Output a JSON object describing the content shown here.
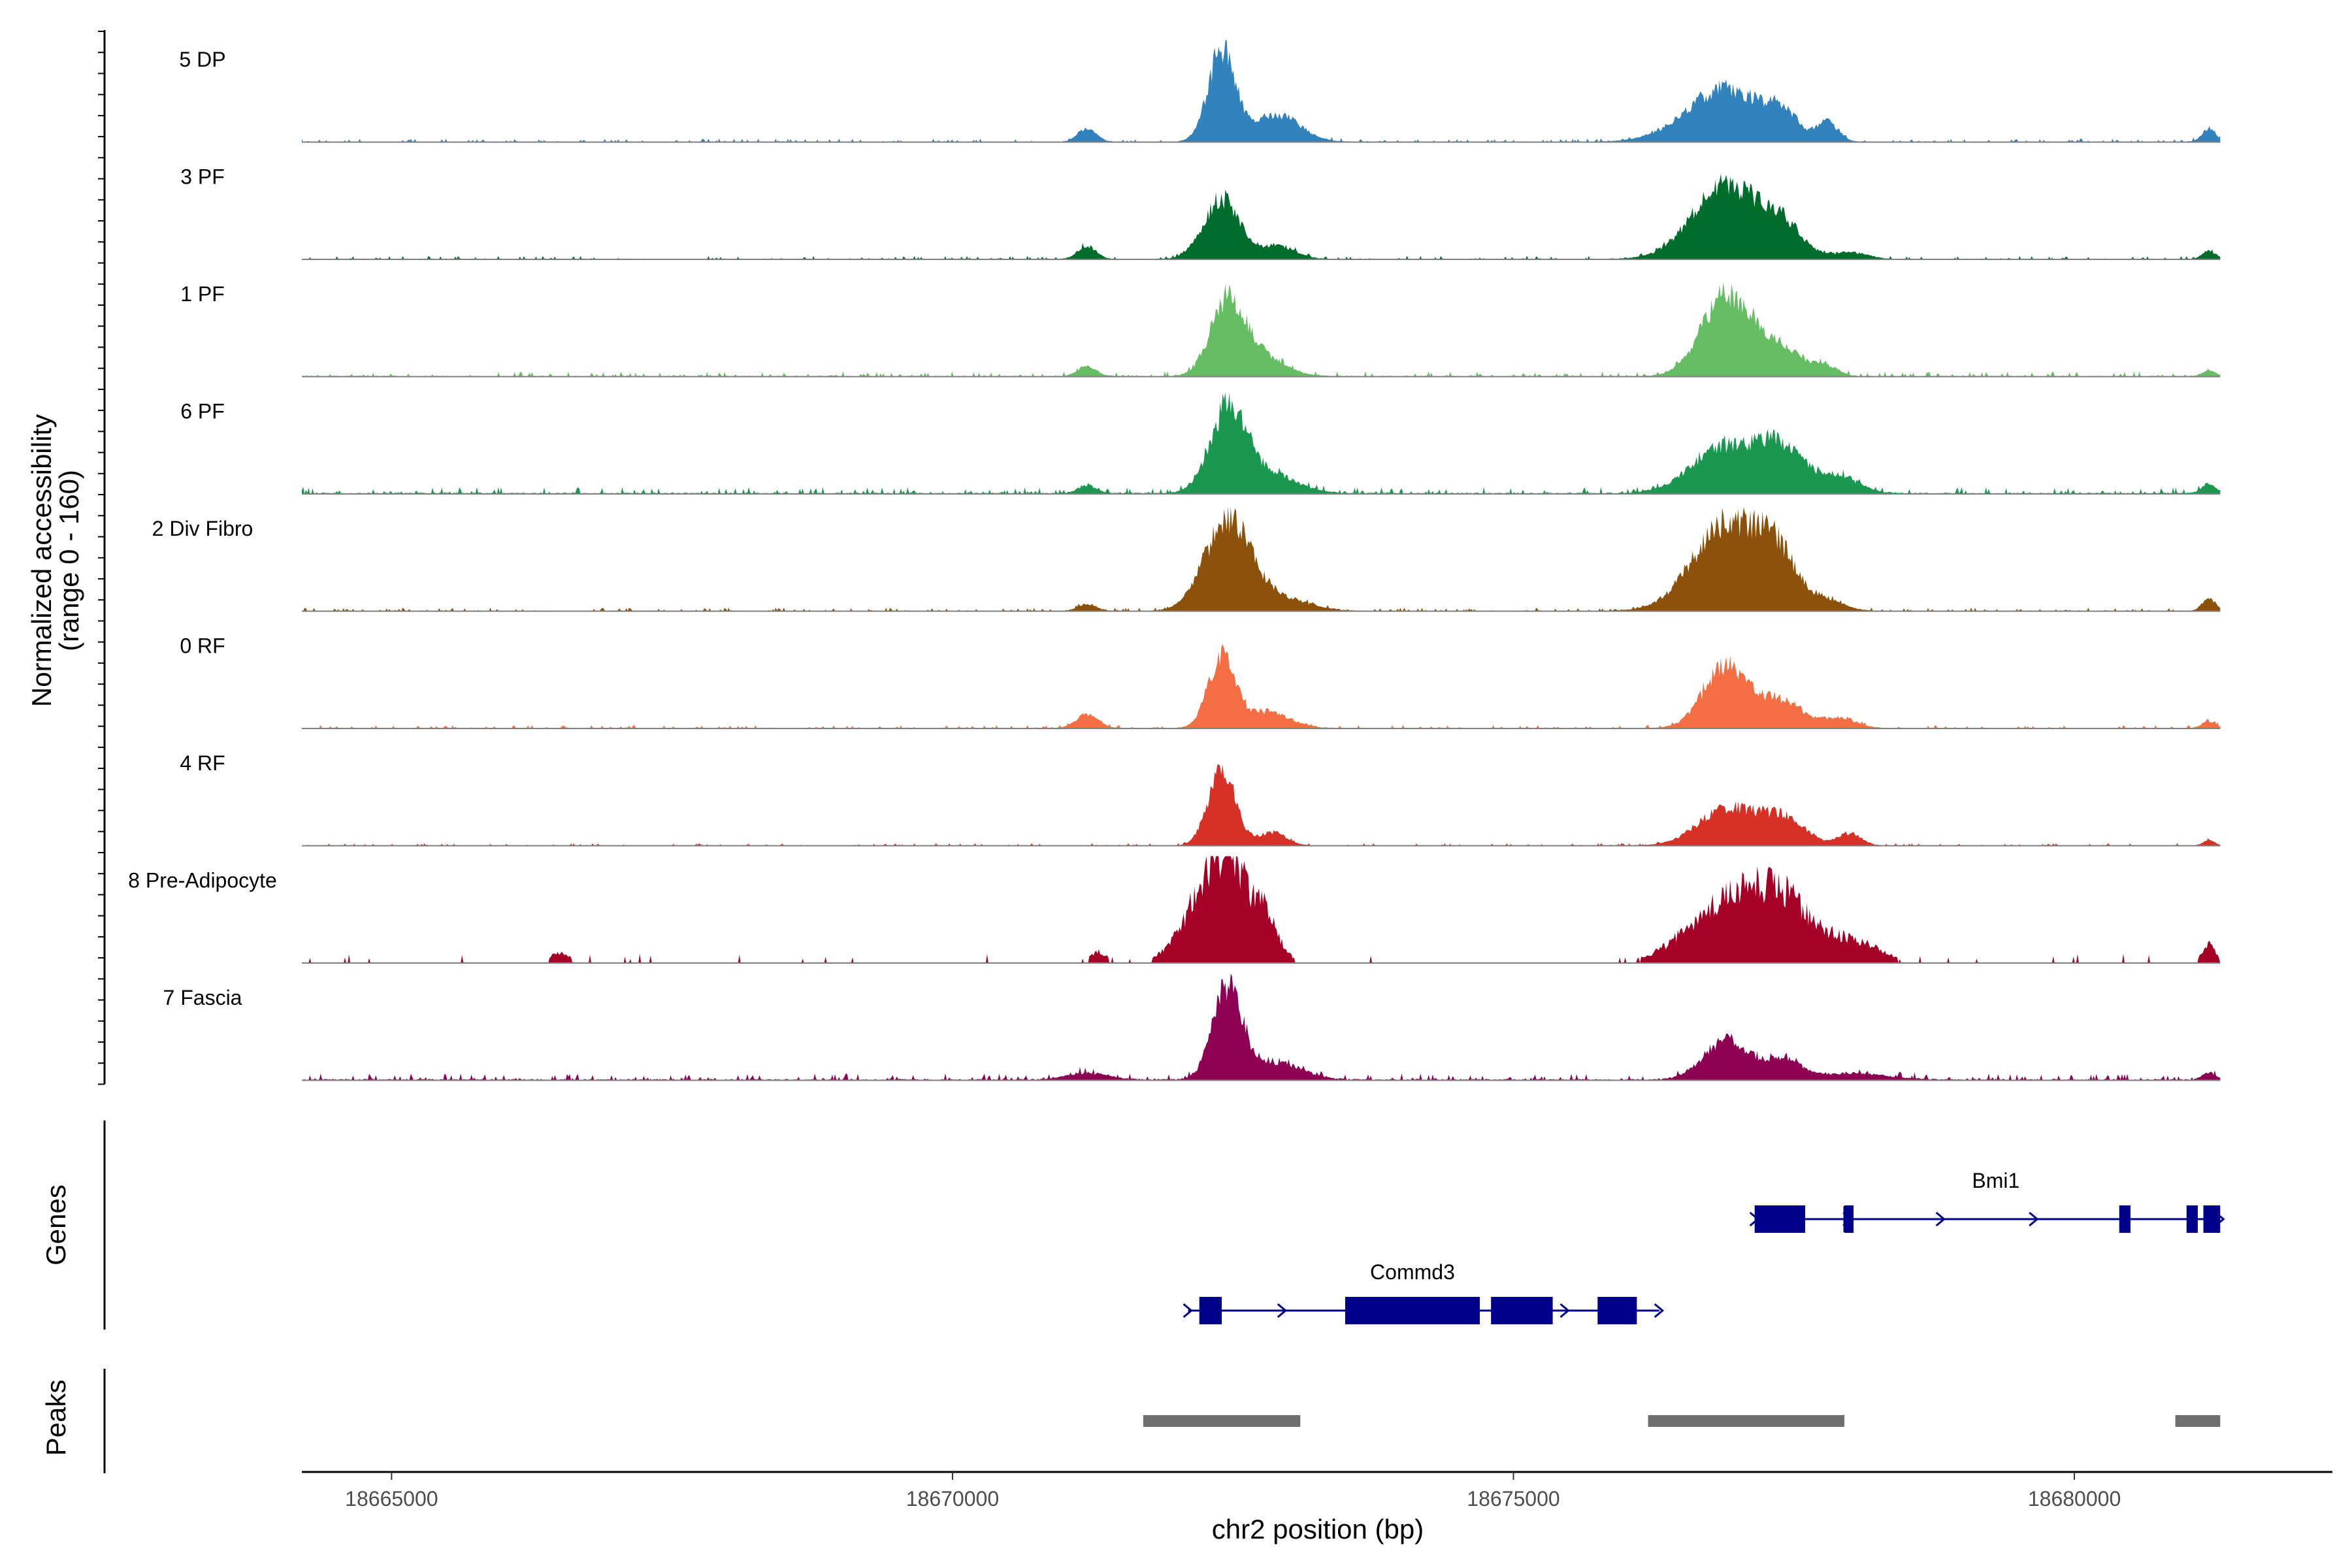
{
  "chart_data": {
    "type": "area",
    "title": "",
    "xlabel": "chr2 position (bp)",
    "ylabel": "Normalized accessibility",
    "ylabel_range": "(range 0 - 160)",
    "xlim": [
      18664200,
      18682300
    ],
    "ylim": [
      0,
      160
    ],
    "x_ticks": [
      18665000,
      18670000,
      18675000,
      18680000
    ],
    "x_tick_labels": [
      "18665000",
      "18670000",
      "18675000",
      "18680000"
    ],
    "track_start": 18664200,
    "track_end": 18681300,
    "tracks": [
      {
        "name": "5 DP",
        "color": "#3182bd",
        "peaks": [
          [
            18672400,
            140,
            120
          ],
          [
            18671200,
            20,
            80
          ],
          [
            18672900,
            40,
            200
          ],
          [
            18676900,
            80,
            350
          ],
          [
            18677400,
            30,
            120
          ],
          [
            18677800,
            28,
            90
          ],
          [
            18681200,
            20,
            60
          ]
        ],
        "baseline": 2,
        "noise": 0.5,
        "sparse": false
      },
      {
        "name": "3 PF",
        "color": "#006d2c",
        "peaks": [
          [
            18672400,
            90,
            160
          ],
          [
            18671200,
            20,
            80
          ],
          [
            18672900,
            20,
            150
          ],
          [
            18676900,
            110,
            300
          ],
          [
            18677400,
            40,
            180
          ],
          [
            18678000,
            10,
            150
          ],
          [
            18681200,
            12,
            60
          ]
        ],
        "baseline": 2,
        "noise": 0.5,
        "sparse": false
      },
      {
        "name": "1 PF",
        "color": "#66bd63",
        "peaks": [
          [
            18672450,
            110,
            150
          ],
          [
            18671200,
            15,
            80
          ],
          [
            18672750,
            30,
            200
          ],
          [
            18676900,
            120,
            220
          ],
          [
            18677400,
            40,
            200
          ],
          [
            18677800,
            12,
            100
          ],
          [
            18681200,
            8,
            60
          ]
        ],
        "baseline": 3,
        "noise": 0.5,
        "sparse": false
      },
      {
        "name": "6 PF",
        "color": "#1a9850",
        "peaks": [
          [
            18672450,
            120,
            160
          ],
          [
            18671200,
            12,
            80
          ],
          [
            18672800,
            30,
            250
          ],
          [
            18676900,
            70,
            300
          ],
          [
            18677400,
            60,
            200
          ],
          [
            18677900,
            25,
            180
          ],
          [
            18681200,
            15,
            60
          ]
        ],
        "baseline": 4,
        "noise": 0.7,
        "sparse": false
      },
      {
        "name": "2 Div Fibro",
        "color": "#8c510a",
        "peaks": [
          [
            18672450,
            135,
            200
          ],
          [
            18671200,
            10,
            80
          ],
          [
            18672900,
            20,
            250
          ],
          [
            18676900,
            130,
            300
          ],
          [
            18677350,
            70,
            180
          ],
          [
            18677800,
            15,
            150
          ],
          [
            18681200,
            18,
            60
          ]
        ],
        "baseline": 2,
        "noise": 0.5,
        "sparse": false
      },
      {
        "name": "0 RF",
        "color": "#f46d43",
        "peaks": [
          [
            18672400,
            105,
            120
          ],
          [
            18671200,
            20,
            100
          ],
          [
            18672800,
            25,
            200
          ],
          [
            18676900,
            95,
            200
          ],
          [
            18677400,
            40,
            180
          ],
          [
            18677900,
            15,
            150
          ],
          [
            18681200,
            10,
            60
          ]
        ],
        "baseline": 2,
        "noise": 0.4,
        "sparse": false
      },
      {
        "name": "4 RF",
        "color": "#d73027",
        "peaks": [
          [
            18672400,
            115,
            120
          ],
          [
            18672850,
            20,
            120
          ],
          [
            18676900,
            55,
            250
          ],
          [
            18677400,
            40,
            200
          ],
          [
            18678000,
            18,
            100
          ],
          [
            18681200,
            8,
            50
          ]
        ],
        "baseline": 1.5,
        "noise": 0.3,
        "sparse": false
      },
      {
        "name": "8 Pre-Adipocyte",
        "color": "#a50026",
        "peaks": [
          [
            18672400,
            150,
            250
          ],
          [
            18672800,
            30,
            100
          ],
          [
            18671300,
            15,
            70
          ],
          [
            18676900,
            80,
            350
          ],
          [
            18677400,
            70,
            250
          ],
          [
            18678000,
            30,
            250
          ],
          [
            18666500,
            15,
            80
          ],
          [
            18681200,
            25,
            60
          ]
        ],
        "baseline": 0,
        "noise": 0,
        "sparse": true
      },
      {
        "name": "7 Fascia",
        "color": "#8e0152",
        "peaks": [
          [
            18672450,
            140,
            130
          ],
          [
            18672900,
            25,
            220
          ],
          [
            18671200,
            10,
            180
          ],
          [
            18676900,
            60,
            200
          ],
          [
            18677400,
            30,
            150
          ],
          [
            18678000,
            10,
            300
          ],
          [
            18681200,
            10,
            60
          ]
        ],
        "baseline": 4,
        "noise": 0.8,
        "sparse": false
      }
    ],
    "genes": [
      {
        "name": "Bmi1",
        "strand": "+",
        "start": 18677150,
        "end": 18681300,
        "exons": [
          [
            18677150,
            18677600
          ],
          [
            18677950,
            18677980
          ],
          [
            18680400,
            18680500
          ],
          [
            18681000,
            18681100
          ],
          [
            18681150,
            18681300
          ]
        ],
        "label_position": 18679300
      },
      {
        "name": "Commd3",
        "strand": "+",
        "start": 18672100,
        "end": 18676300,
        "exons": [
          [
            18672200,
            18672400
          ],
          [
            18673500,
            18674700
          ],
          [
            18674800,
            18675350
          ],
          [
            18675750,
            18676100
          ]
        ],
        "label_position": 18674100
      }
    ],
    "peaks_track": [
      [
        18671700,
        18673100
      ],
      [
        18676200,
        18677950
      ],
      [
        18680900,
        18681300
      ]
    ],
    "genes_track_label": "Genes",
    "peaks_track_label": "Peaks",
    "peaks_color": "#6e6e6e",
    "gene_color": "#00008b"
  }
}
